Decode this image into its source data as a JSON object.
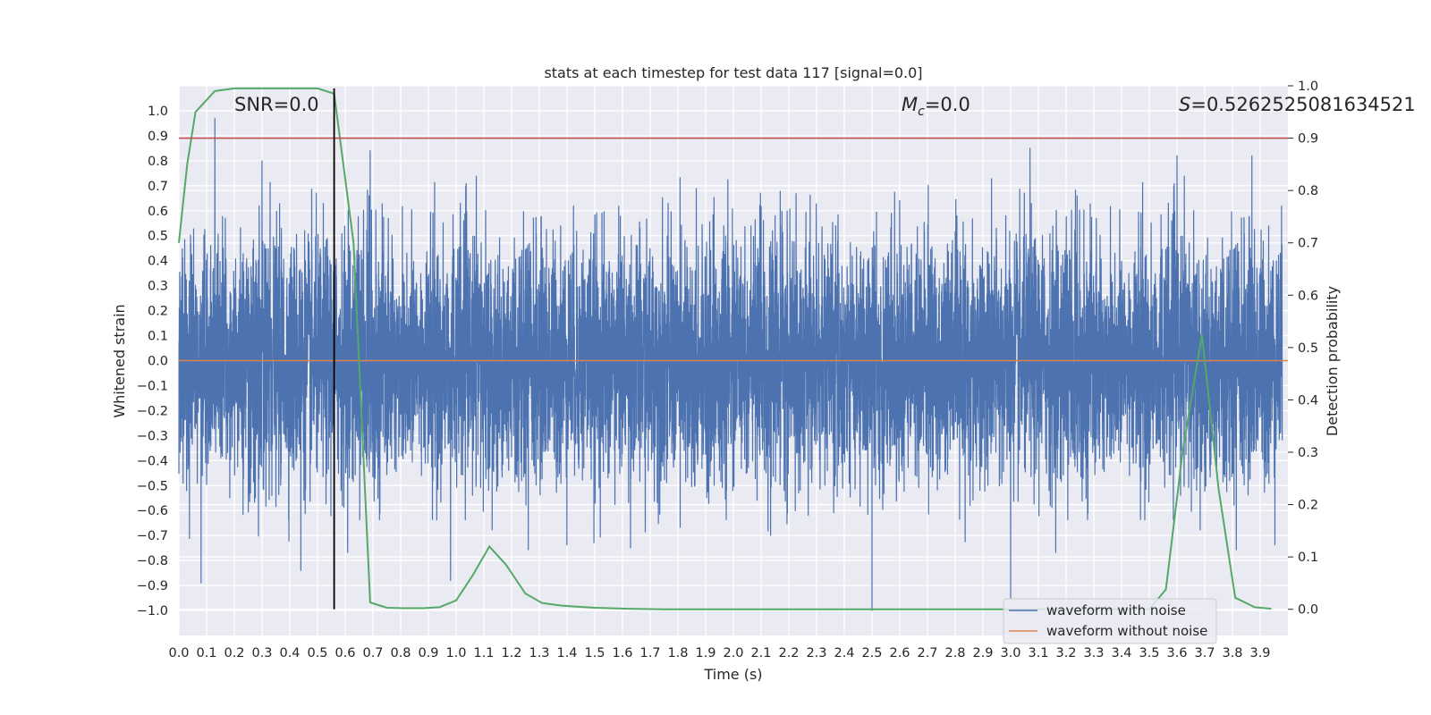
{
  "chart_data": {
    "type": "line",
    "title": "stats at each timestep for test data 117 [signal=0.0]",
    "xlabel": "Time (s)",
    "ylabel": "Whitened strain",
    "y2label": "Detection probability",
    "xlim": [
      0.0,
      4.0
    ],
    "ylim": [
      -1.1,
      1.1
    ],
    "y2lim": [
      -0.05,
      1.0
    ],
    "xticks": [
      0.0,
      0.1,
      0.2,
      0.3,
      0.4,
      0.5,
      0.6,
      0.7,
      0.8,
      0.9,
      1.0,
      1.1,
      1.2,
      1.3,
      1.4,
      1.5,
      1.6,
      1.7,
      1.8,
      1.9,
      2.0,
      2.1,
      2.2,
      2.3,
      2.4,
      2.5,
      2.6,
      2.7,
      2.8,
      2.9,
      3.0,
      3.1,
      3.2,
      3.3,
      3.4,
      3.5,
      3.6,
      3.7,
      3.8,
      3.9
    ],
    "yticks": [
      -1.0,
      -0.9,
      -0.8,
      -0.7,
      -0.6,
      -0.5,
      -0.4,
      -0.3,
      -0.2,
      -0.1,
      0.0,
      0.1,
      0.2,
      0.3,
      0.4,
      0.5,
      0.6,
      0.7,
      0.8,
      0.9,
      1.0
    ],
    "y2ticks": [
      0.0,
      0.1,
      0.2,
      0.3,
      0.4,
      0.5,
      0.6,
      0.7,
      0.8,
      0.9,
      1.0
    ],
    "grid": true,
    "annotations": {
      "snr": "SNR=0.0",
      "mc_symbol": "M",
      "mc_sub": "c",
      "mc_value": "=0.0",
      "s_symbol": "S",
      "s_value": "=0.5262525081634521"
    },
    "threshold": 0.9,
    "marker_time": 0.56,
    "series": [
      {
        "name": "waveform with noise",
        "axis": "left",
        "color": "#4c72b0",
        "sample_rate": 2048,
        "noise_sigma": 0.24,
        "notable_peaks": [
          {
            "x": 0.13,
            "y": 0.97
          },
          {
            "x": 0.3,
            "y": 0.8
          },
          {
            "x": 0.69,
            "y": 0.84
          },
          {
            "x": 3.0,
            "y": 0.94
          },
          {
            "x": 3.07,
            "y": 0.85
          },
          {
            "x": 3.6,
            "y": 0.82
          },
          {
            "x": 3.87,
            "y": 0.82
          },
          {
            "x": 0.08,
            "y": -0.89
          },
          {
            "x": 0.44,
            "y": -0.84
          },
          {
            "x": 0.98,
            "y": -0.88
          },
          {
            "x": 2.5,
            "y": -1.0
          },
          {
            "x": 3.0,
            "y": -0.95
          }
        ]
      },
      {
        "name": "waveform without noise",
        "axis": "left",
        "color": "#dd8452",
        "value": 0.0
      },
      {
        "name": "detection probability",
        "axis": "right",
        "color": "#55a868",
        "x": [
          0.0,
          0.03,
          0.06,
          0.13,
          0.2,
          0.3,
          0.4,
          0.5,
          0.56,
          0.63,
          0.69,
          0.75,
          0.81,
          0.88,
          0.94,
          1.0,
          1.06,
          1.12,
          1.18,
          1.25,
          1.31,
          1.38,
          1.5,
          1.62,
          1.75,
          2.0,
          2.5,
          3.0,
          3.5,
          3.56,
          3.62,
          3.69,
          3.75,
          3.81,
          3.88,
          3.94
        ],
        "y": [
          0.7,
          0.85,
          0.95,
          0.99,
          0.995,
          0.995,
          0.995,
          0.995,
          0.985,
          0.7,
          0.013,
          0.003,
          0.002,
          0.002,
          0.004,
          0.017,
          0.065,
          0.12,
          0.085,
          0.03,
          0.012,
          0.007,
          0.003,
          0.001,
          0.0,
          0.0,
          0.0,
          0.0,
          0.0,
          0.038,
          0.3,
          0.525,
          0.23,
          0.022,
          0.004,
          0.001
        ]
      }
    ],
    "legend": {
      "placement": "lower-right",
      "entries": [
        "waveform with noise",
        "waveform without noise"
      ]
    }
  }
}
